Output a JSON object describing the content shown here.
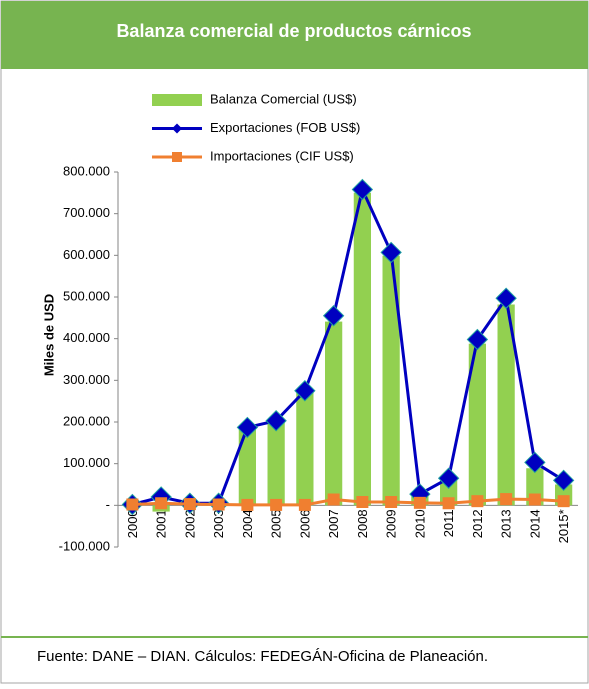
{
  "chart_data": {
    "type": "bar",
    "title": "Balanza comercial de productos cárnicos",
    "y_label": "Miles de USD",
    "source": "Fuente: DANE – DIAN. Cálculos: FEDEGÁN-Oficina de Planeación.",
    "categories": [
      "2000",
      "2001",
      "2002",
      "2003",
      "2004",
      "2005",
      "2006",
      "2007",
      "2008",
      "2009",
      "2010",
      "2011",
      "2012",
      "2013",
      "2014",
      "2015*"
    ],
    "series": [
      {
        "name": "Balanza Comercial (US$)",
        "type": "bar",
        "color": "#92d050",
        "values": [
          0,
          -15000,
          2000,
          3000,
          186000,
          202000,
          274000,
          441000,
          750000,
          599000,
          21000,
          60000,
          388000,
          482000,
          89000,
          50000
        ]
      },
      {
        "name": "Exportaciones (FOB US$)",
        "type": "line",
        "color": "#0000c0",
        "values": [
          2000,
          20000,
          5000,
          5000,
          187000,
          203000,
          275000,
          455000,
          758000,
          607000,
          27000,
          65000,
          398000,
          497000,
          103000,
          60000
        ]
      },
      {
        "name": "Importaciones (CIF US$)",
        "type": "line",
        "color": "#f07f30",
        "values": [
          2000,
          5000,
          3000,
          2000,
          1000,
          1000,
          1000,
          14000,
          8000,
          8000,
          6000,
          5000,
          10000,
          15000,
          14000,
          10000
        ]
      }
    ],
    "ylim": [
      -100000,
      800000
    ],
    "yticks": [
      {
        "value": -100000,
        "label": "-100.000"
      },
      {
        "value": 0,
        "label": "-"
      },
      {
        "value": 100000,
        "label": "100.000"
      },
      {
        "value": 200000,
        "label": "200.000"
      },
      {
        "value": 300000,
        "label": "300.000"
      },
      {
        "value": 400000,
        "label": "400.000"
      },
      {
        "value": 500000,
        "label": "500.000"
      },
      {
        "value": 600000,
        "label": "600.000"
      },
      {
        "value": 700000,
        "label": "700.000"
      },
      {
        "value": 800000,
        "label": "800.000"
      }
    ]
  }
}
